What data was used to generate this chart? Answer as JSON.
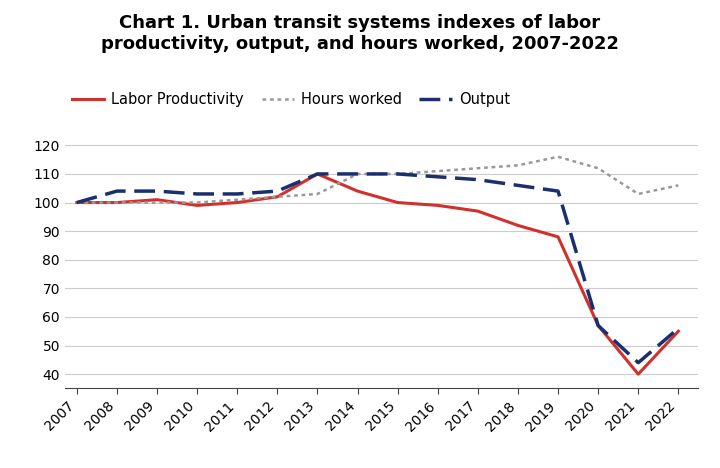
{
  "title": "Chart 1. Urban transit systems indexes of labor\nproductivity, output, and hours worked, 2007-2022",
  "years": [
    2007,
    2008,
    2009,
    2010,
    2011,
    2012,
    2013,
    2014,
    2015,
    2016,
    2017,
    2018,
    2019,
    2020,
    2021,
    2022
  ],
  "labor_productivity": [
    100,
    100,
    101,
    99,
    100,
    102,
    110,
    104,
    100,
    99,
    97,
    92,
    88,
    57,
    40,
    55
  ],
  "hours_worked": [
    100,
    100,
    100,
    100,
    101,
    102,
    103,
    110,
    110,
    111,
    112,
    113,
    116,
    112,
    103,
    106
  ],
  "output": [
    100,
    104,
    104,
    103,
    103,
    104,
    110,
    110,
    110,
    109,
    108,
    106,
    104,
    57,
    44,
    56
  ],
  "labor_productivity_color": "#d0312d",
  "hours_worked_color": "#999999",
  "output_color": "#1a2f6e",
  "ylim": [
    35,
    125
  ],
  "yticks": [
    40,
    50,
    60,
    70,
    80,
    90,
    100,
    110,
    120
  ],
  "legend_labels": [
    "Labor Productivity",
    "Hours worked",
    "Output"
  ],
  "background_color": "#ffffff",
  "grid_color": "#cccccc",
  "title_fontsize": 13,
  "tick_fontsize": 10,
  "legend_fontsize": 10.5
}
